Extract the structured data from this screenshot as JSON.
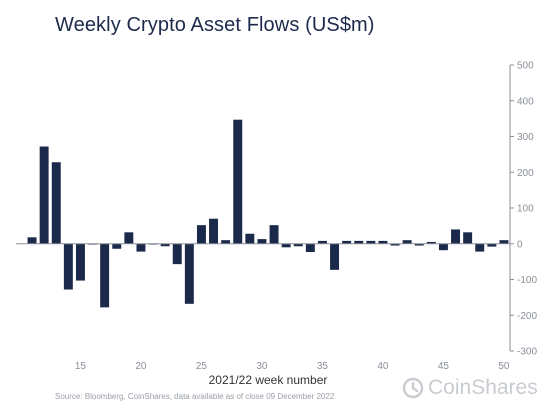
{
  "title": "Weekly Crypto Asset Flows (US$m)",
  "source": "Source: Bloomberg, CoinShares, data available as of close 09 December 2022",
  "logo_text": "CoinShares",
  "chart_data": {
    "type": "bar",
    "title": "Weekly Crypto Asset Flows (US$m)",
    "xlabel": "2021/22 week number",
    "ylabel": "",
    "ylim": [
      -300,
      500
    ],
    "yticks": [
      -300,
      -200,
      -100,
      0,
      100,
      200,
      300,
      400,
      500
    ],
    "xticks": [
      15,
      20,
      25,
      30,
      35,
      40,
      45,
      50
    ],
    "y_axis_position": "right",
    "bar_color": "#1b2a4a",
    "x": [
      11,
      12,
      13,
      14,
      15,
      16,
      17,
      18,
      19,
      20,
      21,
      22,
      23,
      24,
      25,
      26,
      27,
      28,
      29,
      30,
      31,
      32,
      33,
      34,
      35,
      36,
      37,
      38,
      39,
      40,
      41,
      42,
      43,
      44,
      45,
      46,
      47,
      48,
      49,
      50
    ],
    "values": [
      18,
      272,
      228,
      -128,
      -103,
      0,
      -178,
      -14,
      32,
      -22,
      0,
      -7,
      -57,
      -168,
      52,
      70,
      10,
      347,
      28,
      13,
      52,
      -10,
      -7,
      -23,
      8,
      -73,
      8,
      8,
      8,
      8,
      -5,
      10,
      -5,
      5,
      -18,
      40,
      32,
      -22,
      -8,
      10
    ]
  }
}
